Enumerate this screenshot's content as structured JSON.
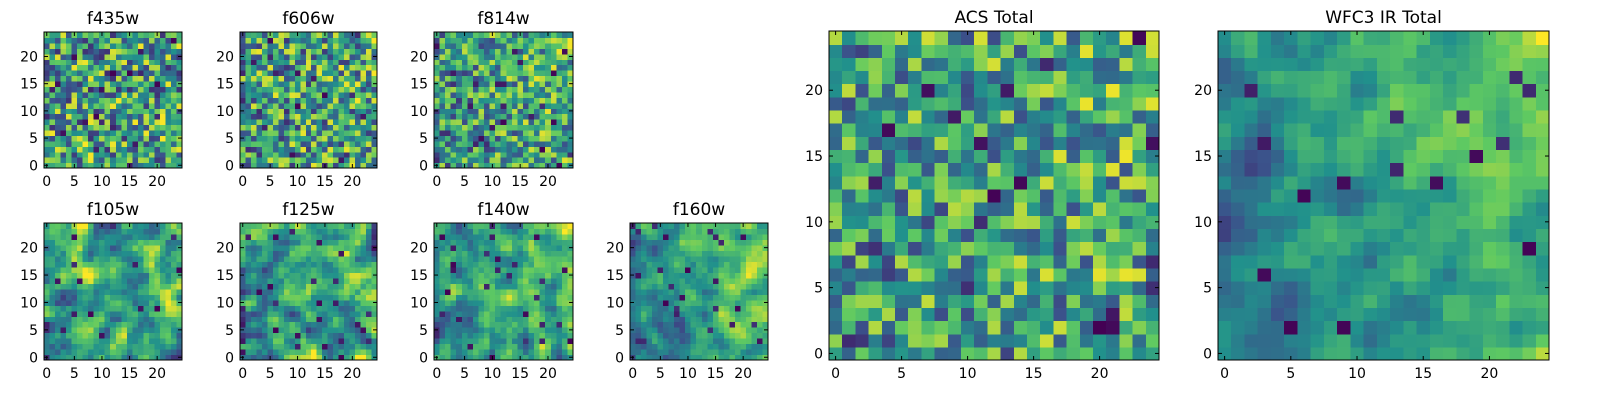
{
  "figure": {
    "description_type": "grid of heatmap images (viridis colormap)",
    "colormap": [
      "#440154",
      "#3b528b",
      "#21918c",
      "#5ec962",
      "#fde725"
    ]
  },
  "chart_data": [
    {
      "type": "heatmap",
      "title": "f435w",
      "grid": [
        25,
        25
      ],
      "xlim": [
        -0.5,
        24.5
      ],
      "ylim": [
        -0.5,
        24.5
      ],
      "xticks": [
        0,
        5,
        10,
        15,
        20
      ],
      "yticks": [
        0,
        5,
        10,
        15,
        20
      ],
      "texture": "noisy",
      "trend": 0.0,
      "seed": 11
    },
    {
      "type": "heatmap",
      "title": "f606w",
      "grid": [
        25,
        25
      ],
      "xlim": [
        -0.5,
        24.5
      ],
      "ylim": [
        -0.5,
        24.5
      ],
      "xticks": [
        0,
        5,
        10,
        15,
        20
      ],
      "yticks": [
        0,
        5,
        10,
        15,
        20
      ],
      "texture": "noisy",
      "trend": 0.05,
      "seed": 23
    },
    {
      "type": "heatmap",
      "title": "f814w",
      "grid": [
        25,
        25
      ],
      "xlim": [
        -0.5,
        24.5
      ],
      "ylim": [
        -0.5,
        24.5
      ],
      "xticks": [
        0,
        5,
        10,
        15,
        20
      ],
      "yticks": [
        0,
        5,
        10,
        15,
        20
      ],
      "texture": "noisy",
      "trend": 0.15,
      "seed": 37
    },
    {
      "type": "heatmap",
      "title": "f105w",
      "grid": [
        25,
        25
      ],
      "xlim": [
        -0.5,
        24.5
      ],
      "ylim": [
        -0.5,
        24.5
      ],
      "xticks": [
        0,
        5,
        10,
        15,
        20
      ],
      "yticks": [
        0,
        5,
        10,
        15,
        20
      ],
      "texture": "smooth",
      "trend": 0.2,
      "seed": 41
    },
    {
      "type": "heatmap",
      "title": "f125w",
      "grid": [
        25,
        25
      ],
      "xlim": [
        -0.5,
        24.5
      ],
      "ylim": [
        -0.5,
        24.5
      ],
      "xticks": [
        0,
        5,
        10,
        15,
        20
      ],
      "yticks": [
        0,
        5,
        10,
        15,
        20
      ],
      "texture": "smooth",
      "trend": 0.2,
      "seed": 53
    },
    {
      "type": "heatmap",
      "title": "f140w",
      "grid": [
        25,
        25
      ],
      "xlim": [
        -0.5,
        24.5
      ],
      "ylim": [
        -0.5,
        24.5
      ],
      "xticks": [
        0,
        5,
        10,
        15,
        20
      ],
      "yticks": [
        0,
        5,
        10,
        15,
        20
      ],
      "texture": "smooth",
      "trend": 0.3,
      "seed": 67
    },
    {
      "type": "heatmap",
      "title": "f160w",
      "grid": [
        25,
        25
      ],
      "xlim": [
        -0.5,
        24.5
      ],
      "ylim": [
        -0.5,
        24.5
      ],
      "xticks": [
        0,
        5,
        10,
        15,
        20
      ],
      "yticks": [
        0,
        5,
        10,
        15,
        20
      ],
      "texture": "smooth",
      "trend": 0.45,
      "seed": 79
    },
    {
      "type": "heatmap",
      "title": "ACS Total",
      "grid": [
        25,
        25
      ],
      "xlim": [
        -0.5,
        24.5
      ],
      "ylim": [
        -0.5,
        24.5
      ],
      "xticks": [
        0,
        5,
        10,
        15,
        20
      ],
      "yticks": [
        0,
        5,
        10,
        15,
        20
      ],
      "texture": "noisy",
      "trend": 0.15,
      "seed": 97
    },
    {
      "type": "heatmap",
      "title": "WFC3 IR Total",
      "grid": [
        25,
        25
      ],
      "xlim": [
        -0.5,
        24.5
      ],
      "ylim": [
        -0.5,
        24.5
      ],
      "xticks": [
        0,
        5,
        10,
        15,
        20
      ],
      "yticks": [
        0,
        5,
        10,
        15,
        20
      ],
      "texture": "smooth",
      "trend": 0.55,
      "seed": 113
    }
  ]
}
